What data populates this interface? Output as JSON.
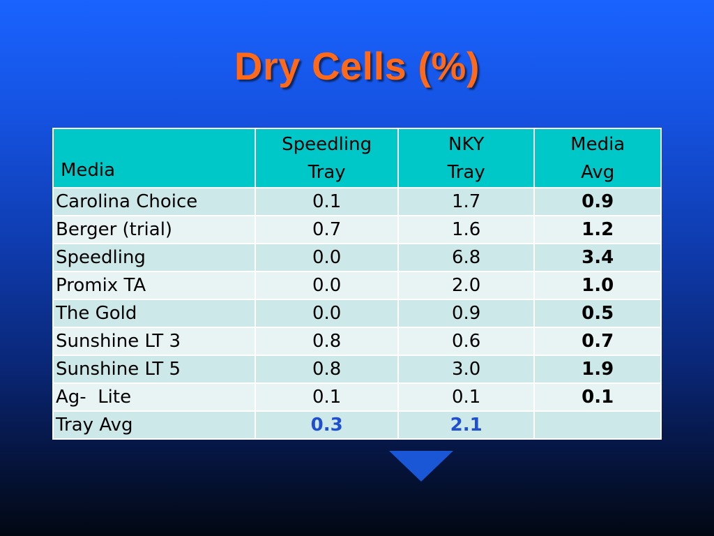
{
  "title": "Dry Cells (%)",
  "table": {
    "headers": {
      "media": "Media",
      "speedling_line1": "Speedling",
      "speedling_line2": "Tray",
      "nky_line1": "NKY",
      "nky_line2": "Tray",
      "avg_line1": "Media",
      "avg_line2": "Avg"
    },
    "rows": [
      {
        "media": "Carolina Choice",
        "speedling": "0.1",
        "nky": "1.7",
        "avg": "0.9"
      },
      {
        "media": "Berger (trial)",
        "speedling": "0.7",
        "nky": "1.6",
        "avg": "1.2"
      },
      {
        "media": "Speedling",
        "speedling": "0.0",
        "nky": "6.8",
        "avg": "3.4"
      },
      {
        "media": "Promix TA",
        "speedling": "0.0",
        "nky": "2.0",
        "avg": "1.0"
      },
      {
        "media": "The Gold",
        "speedling": "0.0",
        "nky": "0.9",
        "avg": "0.5"
      },
      {
        "media": "Sunshine LT 3",
        "speedling": "0.8",
        "nky": "0.6",
        "avg": "0.7"
      },
      {
        "media": "Sunshine LT 5",
        "speedling": "0.8",
        "nky": "3.0",
        "avg": "1.9"
      },
      {
        "media": "Ag-  Lite",
        "speedling": "0.1",
        "nky": "0.1",
        "avg": "0.1"
      }
    ],
    "tray_avg": {
      "label": "Tray Avg",
      "speedling": "0.3",
      "nky": "2.1",
      "avg": ""
    }
  },
  "colors": {
    "title": "#ff6a1a",
    "header_bg": "#00c8c8",
    "row_odd": "#cde8e9",
    "row_even": "#e8f4f4",
    "tray_avg_value": "#1f4fcf"
  }
}
